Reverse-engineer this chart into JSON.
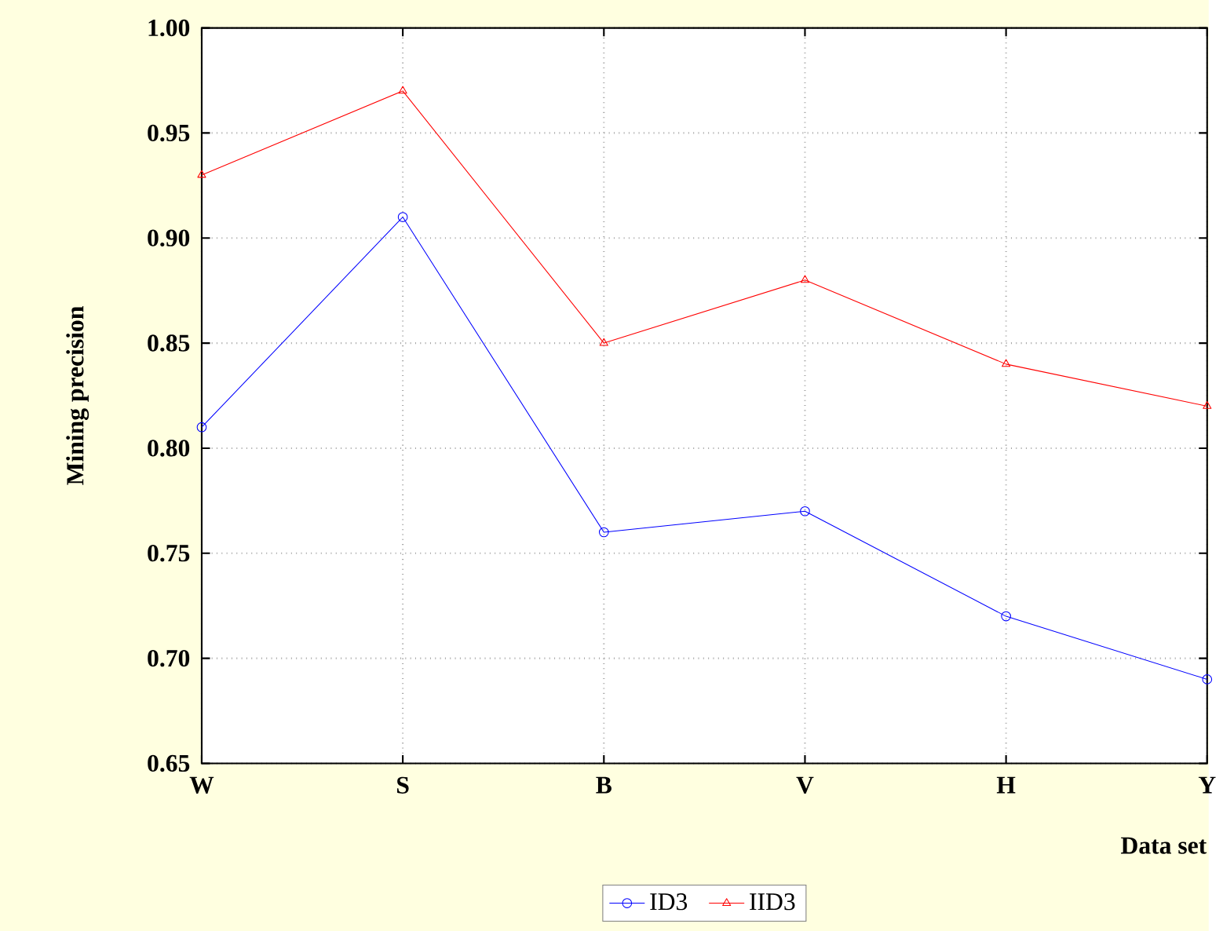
{
  "chart_data": {
    "type": "line",
    "xlabel": "Data set",
    "ylabel": "Mining precision",
    "categories": [
      "W",
      "S",
      "B",
      "V",
      "H",
      "Y"
    ],
    "series": [
      {
        "name": "ID3",
        "color": "#0000ff",
        "marker": "circle",
        "values": [
          0.81,
          0.91,
          0.76,
          0.77,
          0.72,
          0.69
        ]
      },
      {
        "name": "IID3",
        "color": "#ff0000",
        "marker": "triangle",
        "values": [
          0.93,
          0.97,
          0.85,
          0.88,
          0.84,
          0.82
        ]
      }
    ],
    "ylim": [
      0.65,
      1.0
    ],
    "yticks": [
      {
        "value": 0.65,
        "label": "0.65"
      },
      {
        "value": 0.7,
        "label": "0.70"
      },
      {
        "value": 0.75,
        "label": "0.75"
      },
      {
        "value": 0.8,
        "label": "0.80"
      },
      {
        "value": 0.85,
        "label": "0.85"
      },
      {
        "value": 0.9,
        "label": "0.90"
      },
      {
        "value": 0.95,
        "label": "0.95"
      },
      {
        "value": 1.0,
        "label": "1.00"
      }
    ],
    "grid": true,
    "legend": "bottom",
    "line_style": "solid"
  }
}
